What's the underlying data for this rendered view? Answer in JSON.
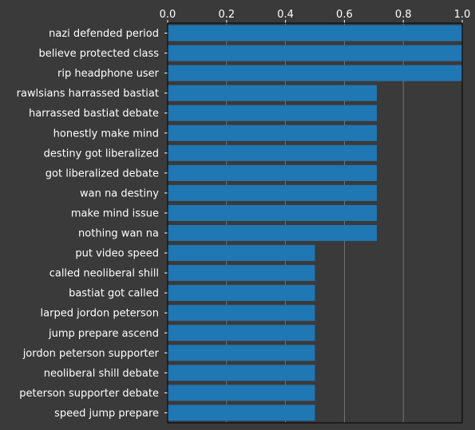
{
  "chart_data": {
    "type": "bar",
    "orientation": "horizontal",
    "categories": [
      "nazi defended period",
      "believe protected class",
      "rip headphone user",
      "rawlsians harrassed bastiat",
      "harrassed bastiat debate",
      "honestly make mind",
      "destiny got liberalized",
      "got liberalized debate",
      "wan na destiny",
      "make mind issue",
      "nothing wan na",
      "put video speed",
      "called neoliberal shill",
      "bastiat got called",
      "larped jordon peterson",
      "jump prepare ascend",
      "jordon peterson supporter",
      "neoliberal shill debate",
      "peterson supporter debate",
      "speed jump prepare"
    ],
    "values": [
      1.0,
      1.0,
      1.0,
      0.71,
      0.71,
      0.71,
      0.71,
      0.71,
      0.71,
      0.71,
      0.71,
      0.5,
      0.5,
      0.5,
      0.5,
      0.5,
      0.5,
      0.5,
      0.5,
      0.5
    ],
    "xlim": [
      0,
      1.0
    ],
    "xticks": [
      "0.0",
      "0.2",
      "0.4",
      "0.6",
      "0.8",
      "1.0"
    ],
    "xaxis_position": "top",
    "grid": "vertical",
    "title": "",
    "xlabel": "",
    "ylabel": "",
    "colors": {
      "background": "#3a3a3a",
      "bar": "#1f77b4",
      "grid": "#808080",
      "text": "#ffffff",
      "axis": "#000000"
    }
  }
}
